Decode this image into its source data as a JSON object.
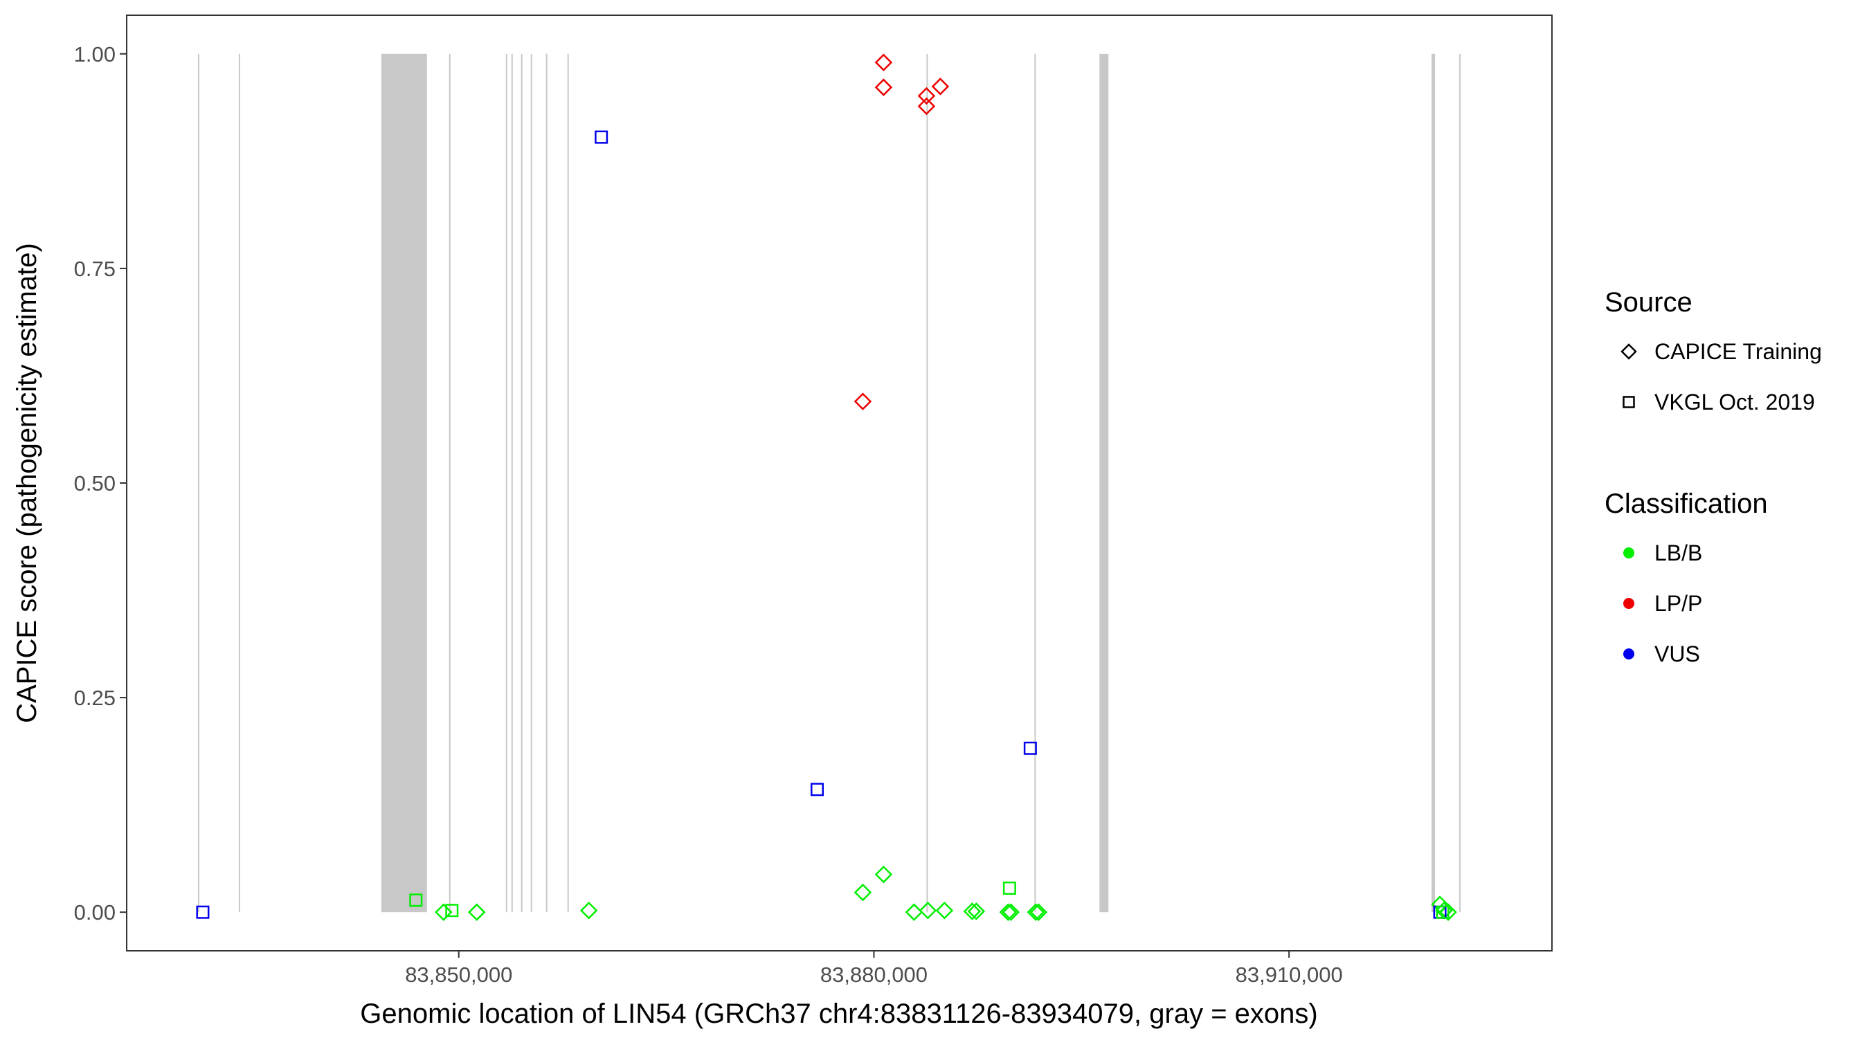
{
  "chart_data": {
    "type": "scatter",
    "xlabel": "Genomic location of LIN54 (GRCh37 chr4:83831126-83934079, gray = exons)",
    "ylabel": "CAPICE score (pathogenicity estimate)",
    "xlim": [
      83826000,
      83929000
    ],
    "ylim": [
      -0.045,
      1.045
    ],
    "x_ticks": [
      83850000,
      83880000,
      83910000
    ],
    "x_tick_labels": [
      "83,850,000",
      "83,880,000",
      "83,910,000"
    ],
    "y_ticks": [
      0,
      0.25,
      0.5,
      0.75,
      1
    ],
    "y_tick_labels": [
      "0.00",
      "0.25",
      "0.50",
      "0.75",
      "1.00"
    ],
    "grid": false,
    "legend_position": "right",
    "legends": [
      {
        "title": "Source",
        "entries": [
          {
            "label": "CAPICE Training",
            "shape": "diamond"
          },
          {
            "label": "VKGL Oct. 2019",
            "shape": "square"
          }
        ]
      },
      {
        "title": "Classification",
        "entries": [
          {
            "label": "LB/B",
            "color": "#00ee00"
          },
          {
            "label": "LP/P",
            "color": "#ee0000"
          },
          {
            "label": "VUS",
            "color": "#0000ee"
          }
        ]
      }
    ],
    "exons": [
      [
        83831150,
        83831250
      ],
      [
        83834100,
        83834200
      ],
      [
        83844400,
        83847700
      ],
      [
        83849300,
        83849400
      ],
      [
        83853400,
        83853450
      ],
      [
        83853800,
        83853850
      ],
      [
        83854500,
        83854550
      ],
      [
        83855200,
        83855250
      ],
      [
        83856300,
        83856350
      ],
      [
        83857850,
        83857950
      ],
      [
        83883800,
        83883850
      ],
      [
        83891600,
        83891650
      ],
      [
        83896300,
        83896950
      ],
      [
        83920300,
        83920550
      ],
      [
        83922300,
        83922400
      ]
    ],
    "exon_color": "#c8c8c8",
    "series": [
      {
        "name": "CAPICE Training",
        "shape": "diamond",
        "points": [
          {
            "x": 83880700,
            "y": 0.99,
            "class": "LP/P"
          },
          {
            "x": 83880700,
            "y": 0.961,
            "class": "LP/P"
          },
          {
            "x": 83883800,
            "y": 0.951,
            "class": "LP/P"
          },
          {
            "x": 83883800,
            "y": 0.939,
            "class": "LP/P"
          },
          {
            "x": 83884800,
            "y": 0.962,
            "class": "LP/P"
          },
          {
            "x": 83879200,
            "y": 0.595,
            "class": "LP/P"
          },
          {
            "x": 83880700,
            "y": 0.044,
            "class": "LB/B"
          },
          {
            "x": 83879200,
            "y": 0.023,
            "class": "LB/B"
          },
          {
            "x": 83882900,
            "y": 0.0,
            "class": "LB/B"
          },
          {
            "x": 83885100,
            "y": 0.002,
            "class": "LB/B"
          },
          {
            "x": 83883900,
            "y": 0.002,
            "class": "LB/B"
          },
          {
            "x": 83887100,
            "y": 0.001,
            "class": "LB/B"
          },
          {
            "x": 83887400,
            "y": 0.001,
            "class": "LB/B"
          },
          {
            "x": 83889700,
            "y": 0.0,
            "class": "LB/B"
          },
          {
            "x": 83889900,
            "y": 0.0,
            "class": "LB/B"
          },
          {
            "x": 83891700,
            "y": 0.0,
            "class": "LB/B"
          },
          {
            "x": 83891900,
            "y": 0.0,
            "class": "LB/B"
          },
          {
            "x": 83848900,
            "y": 0.0,
            "class": "LB/B"
          },
          {
            "x": 83851300,
            "y": 0.0,
            "class": "LB/B"
          },
          {
            "x": 83859400,
            "y": 0.002,
            "class": "LB/B"
          },
          {
            "x": 83920900,
            "y": 0.009,
            "class": "LB/B"
          },
          {
            "x": 83921200,
            "y": 0.002,
            "class": "LB/B"
          },
          {
            "x": 83921500,
            "y": 0.0,
            "class": "LB/B"
          }
        ]
      },
      {
        "name": "VKGL Oct. 2019",
        "shape": "square",
        "points": [
          {
            "x": 83831500,
            "y": 0.0,
            "class": "VUS"
          },
          {
            "x": 83860300,
            "y": 0.903,
            "class": "VUS"
          },
          {
            "x": 83875900,
            "y": 0.143,
            "class": "VUS"
          },
          {
            "x": 83891300,
            "y": 0.191,
            "class": "VUS"
          },
          {
            "x": 83920900,
            "y": 0.0,
            "class": "VUS"
          },
          {
            "x": 83846900,
            "y": 0.014,
            "class": "LB/B"
          },
          {
            "x": 83849500,
            "y": 0.002,
            "class": "LB/B"
          },
          {
            "x": 83889800,
            "y": 0.028,
            "class": "LB/B"
          },
          {
            "x": 83921100,
            "y": 0.0,
            "class": "LB/B"
          }
        ]
      }
    ]
  }
}
